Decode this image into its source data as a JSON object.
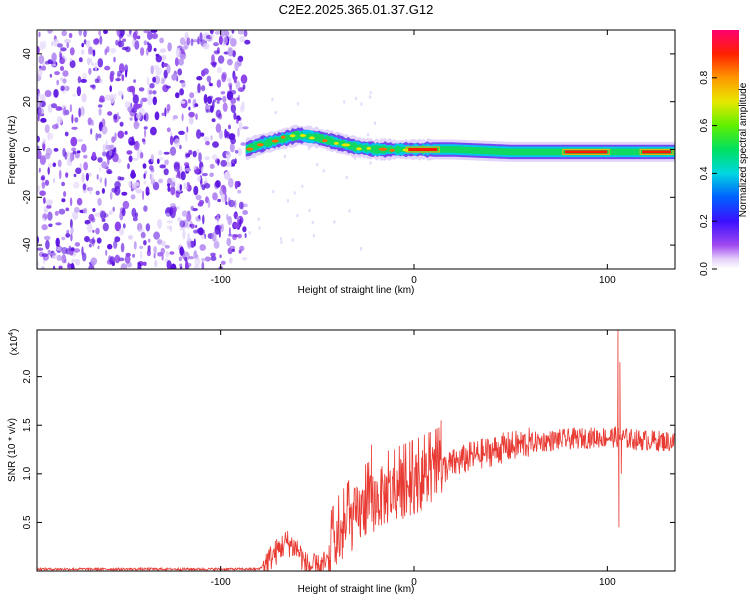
{
  "figure": {
    "title": "C2E2.2025.365.01.37.G12"
  },
  "chart_data": [
    {
      "type": "heatmap",
      "name": "spectrogram",
      "title": "C2E2.2025.365.01.37.G12",
      "xlabel": "Height of straight line (km)",
      "ylabel": "Frequency (Hz)",
      "xlim": [
        -195,
        135
      ],
      "ylim": [
        -50,
        50
      ],
      "xticks": [
        -100,
        0,
        100
      ],
      "xtick_labels": [
        "-100",
        "0",
        "100"
      ],
      "yticks": [
        -40,
        -20,
        0,
        20,
        40
      ],
      "ytick_labels": [
        "-40",
        "-20",
        "0",
        "20",
        "40"
      ],
      "noise_region_x": [
        -195,
        -87
      ],
      "signal_center_track": [
        {
          "x": -87,
          "f": 0
        },
        {
          "x": -80,
          "f": 2
        },
        {
          "x": -70,
          "f": 4
        },
        {
          "x": -60,
          "f": 6
        },
        {
          "x": -50,
          "f": 5
        },
        {
          "x": -40,
          "f": 3
        },
        {
          "x": -30,
          "f": 1
        },
        {
          "x": -20,
          "f": 0
        },
        {
          "x": 0,
          "f": 0
        },
        {
          "x": 20,
          "f": 0
        },
        {
          "x": 50,
          "f": -1
        },
        {
          "x": 80,
          "f": -1
        },
        {
          "x": 100,
          "f": -1
        },
        {
          "x": 135,
          "f": -1
        }
      ],
      "hot_segments": [
        {
          "x0": -3,
          "x1": 12,
          "f": 0
        },
        {
          "x0": 78,
          "x1": 100,
          "f": -1
        },
        {
          "x0": 118,
          "x1": 133,
          "f": -1
        }
      ],
      "colorbar": {
        "label": "Normalized spectral amplitude",
        "range": [
          0,
          1
        ],
        "ticks": [
          0.0,
          0.2,
          0.4,
          0.6,
          0.8
        ],
        "tick_labels": [
          "0.0",
          "0.2",
          "0.4",
          "0.6",
          "0.8"
        ]
      }
    },
    {
      "type": "line",
      "name": "snr",
      "xlabel": "Height of straight line (km)",
      "ylabel": "SNR (10 * v/v)",
      "y_multiplier": "(x10",
      "y_multiplier_exp": "4",
      "y_multiplier_close": ")",
      "xlim": [
        -195,
        135
      ],
      "ylim": [
        0,
        2.48
      ],
      "xticks": [
        -100,
        0,
        100
      ],
      "xtick_labels": [
        "-100",
        "0",
        "100"
      ],
      "yticks": [
        0.5,
        1.0,
        1.5,
        2.0
      ],
      "ytick_labels": [
        "0.5",
        "1.0",
        "1.5",
        "2.0"
      ],
      "color": "#e83a32",
      "envelope": [
        {
          "x": -195,
          "y": 0.02
        },
        {
          "x": -100,
          "y": 0.02
        },
        {
          "x": -80,
          "y": 0.02
        },
        {
          "x": -72,
          "y": 0.18
        },
        {
          "x": -66,
          "y": 0.3
        },
        {
          "x": -60,
          "y": 0.22
        },
        {
          "x": -56,
          "y": 0.06
        },
        {
          "x": -50,
          "y": 0.03
        },
        {
          "x": -45,
          "y": 0.08
        },
        {
          "x": -40,
          "y": 0.3
        },
        {
          "x": -33,
          "y": 0.5
        },
        {
          "x": -25,
          "y": 0.65
        },
        {
          "x": -18,
          "y": 0.75
        },
        {
          "x": -10,
          "y": 0.82
        },
        {
          "x": 0,
          "y": 0.9
        },
        {
          "x": 10,
          "y": 1.0
        },
        {
          "x": 20,
          "y": 1.1
        },
        {
          "x": 30,
          "y": 1.18
        },
        {
          "x": 45,
          "y": 1.26
        },
        {
          "x": 60,
          "y": 1.32
        },
        {
          "x": 75,
          "y": 1.35
        },
        {
          "x": 90,
          "y": 1.37
        },
        {
          "x": 104,
          "y": 1.38
        },
        {
          "x": 115,
          "y": 1.35
        },
        {
          "x": 135,
          "y": 1.33
        }
      ],
      "spikes": [
        {
          "x": 105.5,
          "y": 2.48
        },
        {
          "x": 106.0,
          "y": 0.45
        },
        {
          "x": 106.5,
          "y": 2.15
        },
        {
          "x": 107.2,
          "y": 1.0
        },
        {
          "x": 14,
          "y": 1.55
        },
        {
          "x": 12,
          "y": 1.4
        },
        {
          "x": -22,
          "y": 1.3
        },
        {
          "x": -10,
          "y": 1.25
        }
      ]
    }
  ],
  "colors": {
    "axis": "#000000",
    "background": "#ffffff",
    "line": "#e83a32",
    "noise_dark": "#5a10e0",
    "noise_light": "#d8c4f6"
  }
}
